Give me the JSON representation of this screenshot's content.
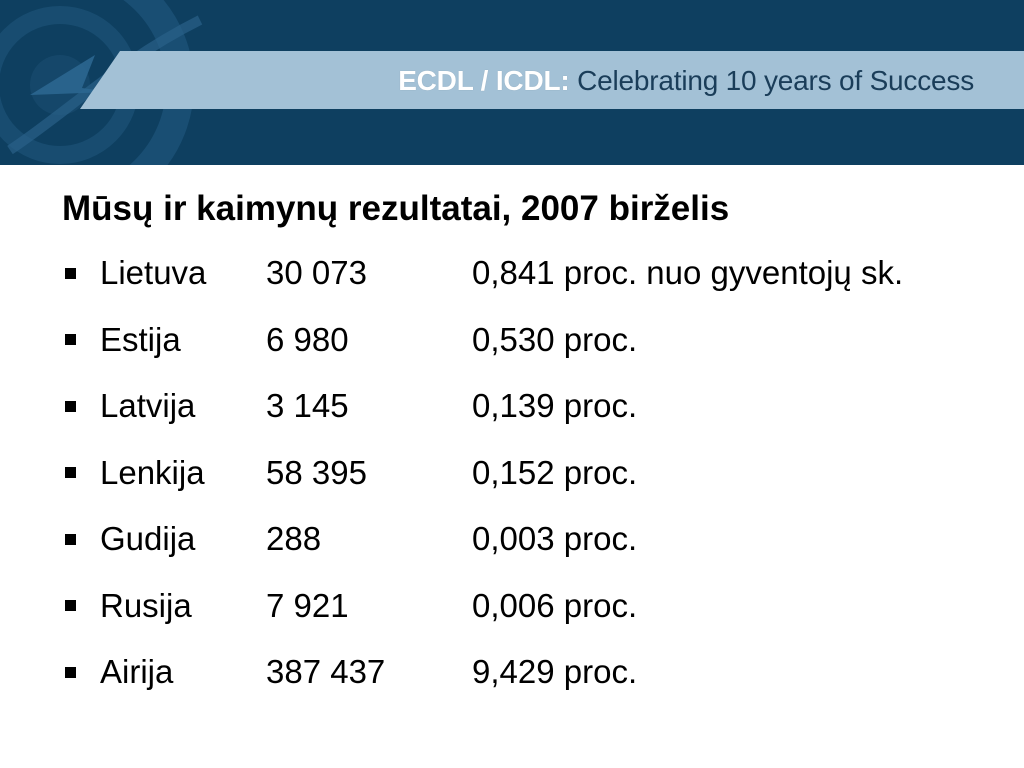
{
  "header": {
    "brand": "ECDL / ICDL:",
    "tagline": "Celebrating 10 years of Success"
  },
  "slide": {
    "heading": "Mūsų ir kaimynų rezultatai, 2007 birželis",
    "rows": [
      {
        "country": "Lietuva",
        "count": "30 073",
        "percent": "0,841 proc. nuo gyventojų sk."
      },
      {
        "country": "Estija",
        "count": "6 980",
        "percent": "0,530 proc."
      },
      {
        "country": "Latvija",
        "count": "3 145",
        "percent": "0,139 proc."
      },
      {
        "country": "Lenkija",
        "count": "58 395",
        "percent": "0,152 proc."
      },
      {
        "country": "Gudija",
        "count": "288",
        "percent": "0,003 proc."
      },
      {
        "country": "Rusija",
        "count": "7 921",
        "percent": "0,006 proc."
      },
      {
        "country": "Airija",
        "count": "387 437",
        "percent": "9,429 proc."
      }
    ]
  },
  "colors": {
    "header_bg": "#0e3f60",
    "header_strip": "#a3c1d6",
    "header_text": "#1a3d59"
  }
}
